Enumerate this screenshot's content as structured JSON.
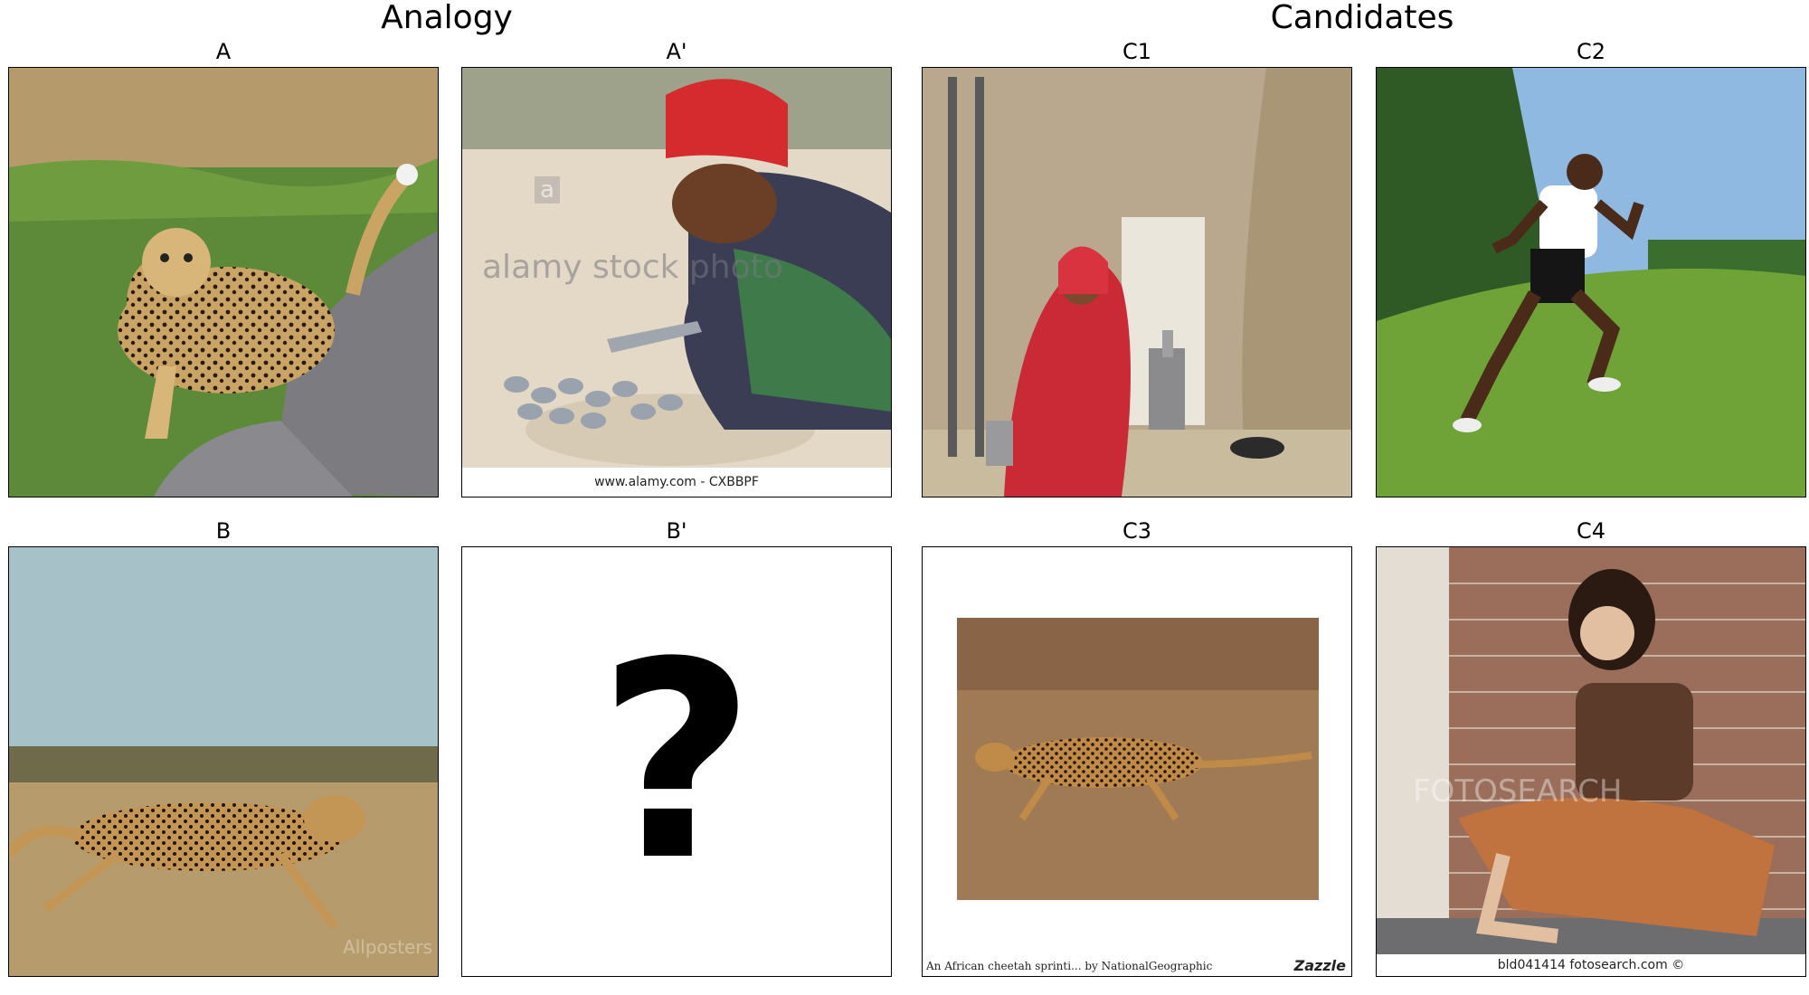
{
  "headers": {
    "analogy": "Analogy",
    "candidates": "Candidates"
  },
  "panels": {
    "A": {
      "label": "A"
    },
    "A_prime": {
      "label": "A'",
      "watermark": "alamy stock photo",
      "watermark_small": "a",
      "footer": "www.alamy.com - CXBBPF"
    },
    "B": {
      "label": "B",
      "watermark": "Allposters"
    },
    "B_prime": {
      "label": "B'",
      "placeholder": "?"
    },
    "C1": {
      "label": "C1"
    },
    "C2": {
      "label": "C2"
    },
    "C3": {
      "label": "C3",
      "caption_left": "An African cheetah sprinti... by NationalGeographic",
      "caption_right": "Zazzle"
    },
    "C4": {
      "label": "C4",
      "watermark": "FOTOSEARCH",
      "footer": "bld041414  fotosearch.com ©"
    }
  }
}
